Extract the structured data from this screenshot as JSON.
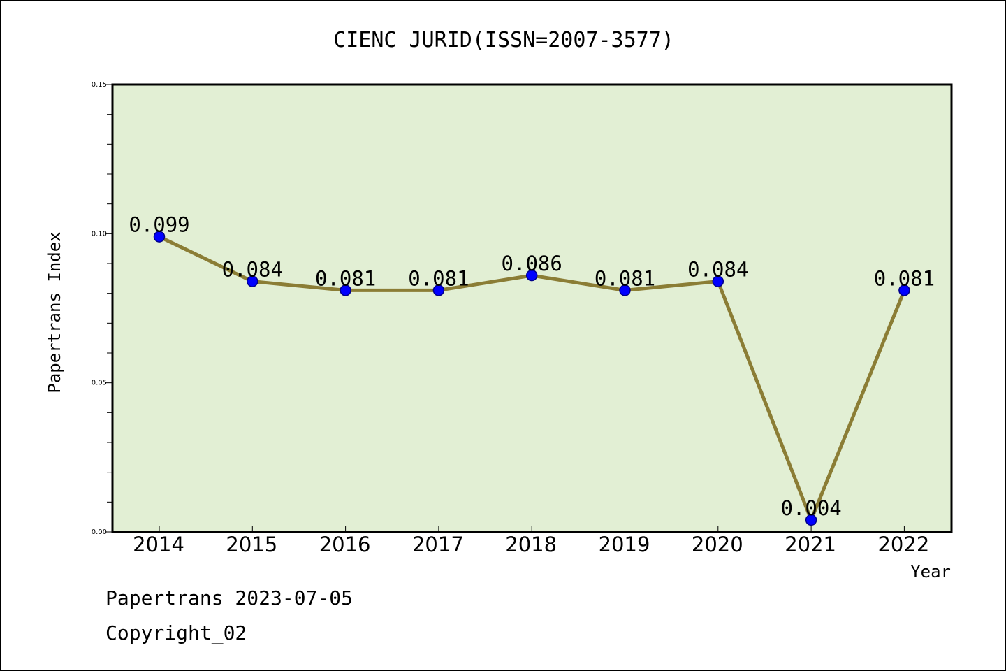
{
  "colors": {
    "plot_background": "#e2efd4",
    "line": "#8b7d35",
    "marker_fill": "#0000ff",
    "marker_stroke": "#00008b",
    "frame": "#000000"
  },
  "chart_data": {
    "type": "line",
    "title": "CIENC JURID(ISSN=2007-3577)",
    "xlabel": "Year",
    "ylabel": "Papertrans Index",
    "categories": [
      "2014",
      "2015",
      "2016",
      "2017",
      "2018",
      "2019",
      "2020",
      "2021",
      "2022"
    ],
    "series": [
      {
        "values": [
          0.099,
          0.084,
          0.081,
          0.081,
          0.086,
          0.081,
          0.084,
          0.004,
          0.081
        ],
        "labels": [
          "0.099",
          "0.084",
          "0.081",
          "0.081",
          "0.086",
          "0.081",
          "0.084",
          "0.004",
          "0.081"
        ]
      }
    ],
    "ylim": [
      0,
      0.15
    ],
    "yticks": [
      "0.00",
      "0.05",
      "0.10",
      "0.15"
    ],
    "ytick_values": [
      0,
      0.05,
      0.1,
      0.15
    ],
    "grid": false
  },
  "footer": {
    "line1": "Papertrans 2023-07-05",
    "line2": "Copyright_02"
  }
}
